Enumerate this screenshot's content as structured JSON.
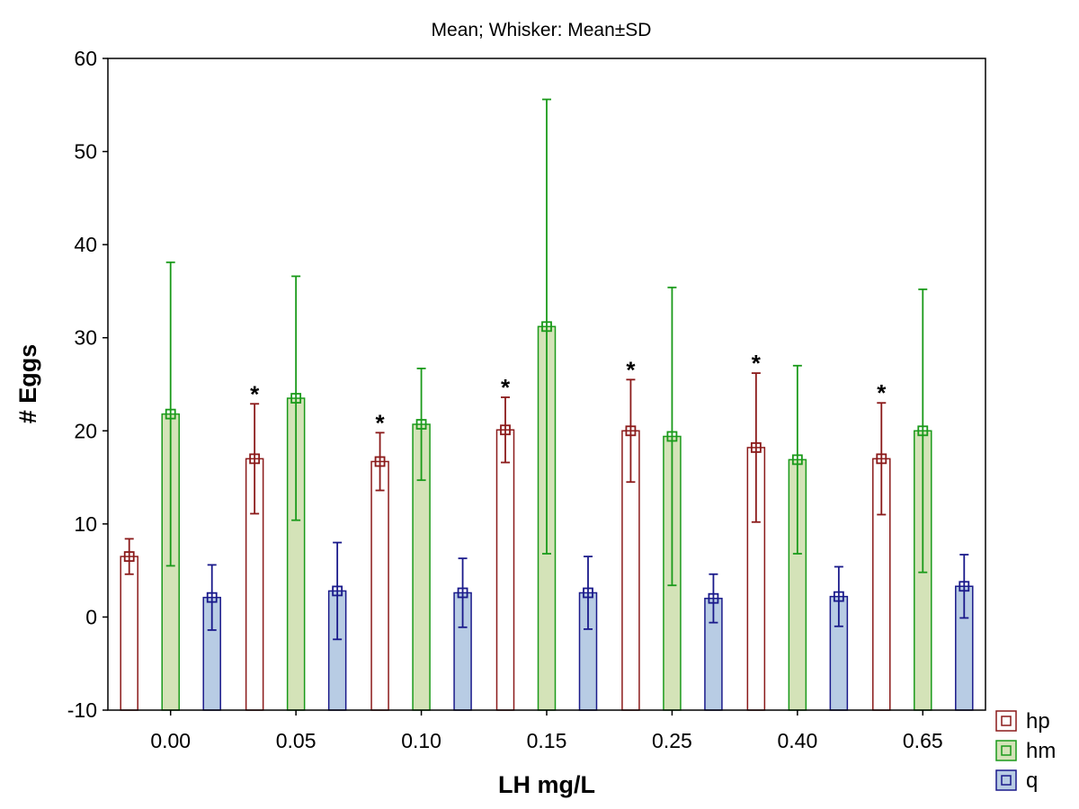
{
  "chart_data": {
    "type": "bar",
    "title": "Mean; Whisker: Mean±SD",
    "xlabel": "LH mg/L",
    "ylabel": "# Eggs",
    "ylim": [
      -10,
      60
    ],
    "yticks": [
      "60",
      "50",
      "40",
      "30",
      "20",
      "10",
      "0",
      "-10"
    ],
    "ytick_values": [
      60,
      50,
      40,
      30,
      20,
      10,
      0,
      -10
    ],
    "categories": [
      "0.00",
      "0.05",
      "0.10",
      "0.15",
      "0.25",
      "0.40",
      "0.65"
    ],
    "grid": false,
    "legend_position": "bottom-right",
    "series": [
      {
        "name": "hp",
        "color": "#8b1a1a",
        "fill": "#ffffff",
        "values": [
          6.5,
          17.0,
          16.7,
          20.1,
          20.0,
          18.2,
          17.0
        ],
        "sd": [
          1.9,
          5.9,
          3.1,
          3.5,
          5.5,
          8.0,
          6.0
        ],
        "significant": [
          false,
          true,
          true,
          true,
          true,
          true,
          true
        ],
        "marker": "*"
      },
      {
        "name": "hm",
        "color": "#1a9a1a",
        "fill": "#d4e3b8",
        "values": [
          21.8,
          23.5,
          20.7,
          31.2,
          19.4,
          16.9,
          20.0
        ],
        "sd": [
          16.3,
          13.1,
          6.0,
          24.4,
          16.0,
          10.1,
          15.2
        ],
        "significant": [
          false,
          false,
          false,
          false,
          false,
          false,
          false
        ]
      },
      {
        "name": "q",
        "color": "#1a1a8b",
        "fill": "#b8cce4",
        "values": [
          2.1,
          2.8,
          2.6,
          2.6,
          2.0,
          2.2,
          3.3
        ],
        "sd": [
          3.5,
          5.2,
          3.7,
          3.9,
          2.6,
          3.2,
          3.4
        ],
        "significant": [
          false,
          false,
          false,
          false,
          false,
          false,
          false
        ]
      }
    ]
  }
}
